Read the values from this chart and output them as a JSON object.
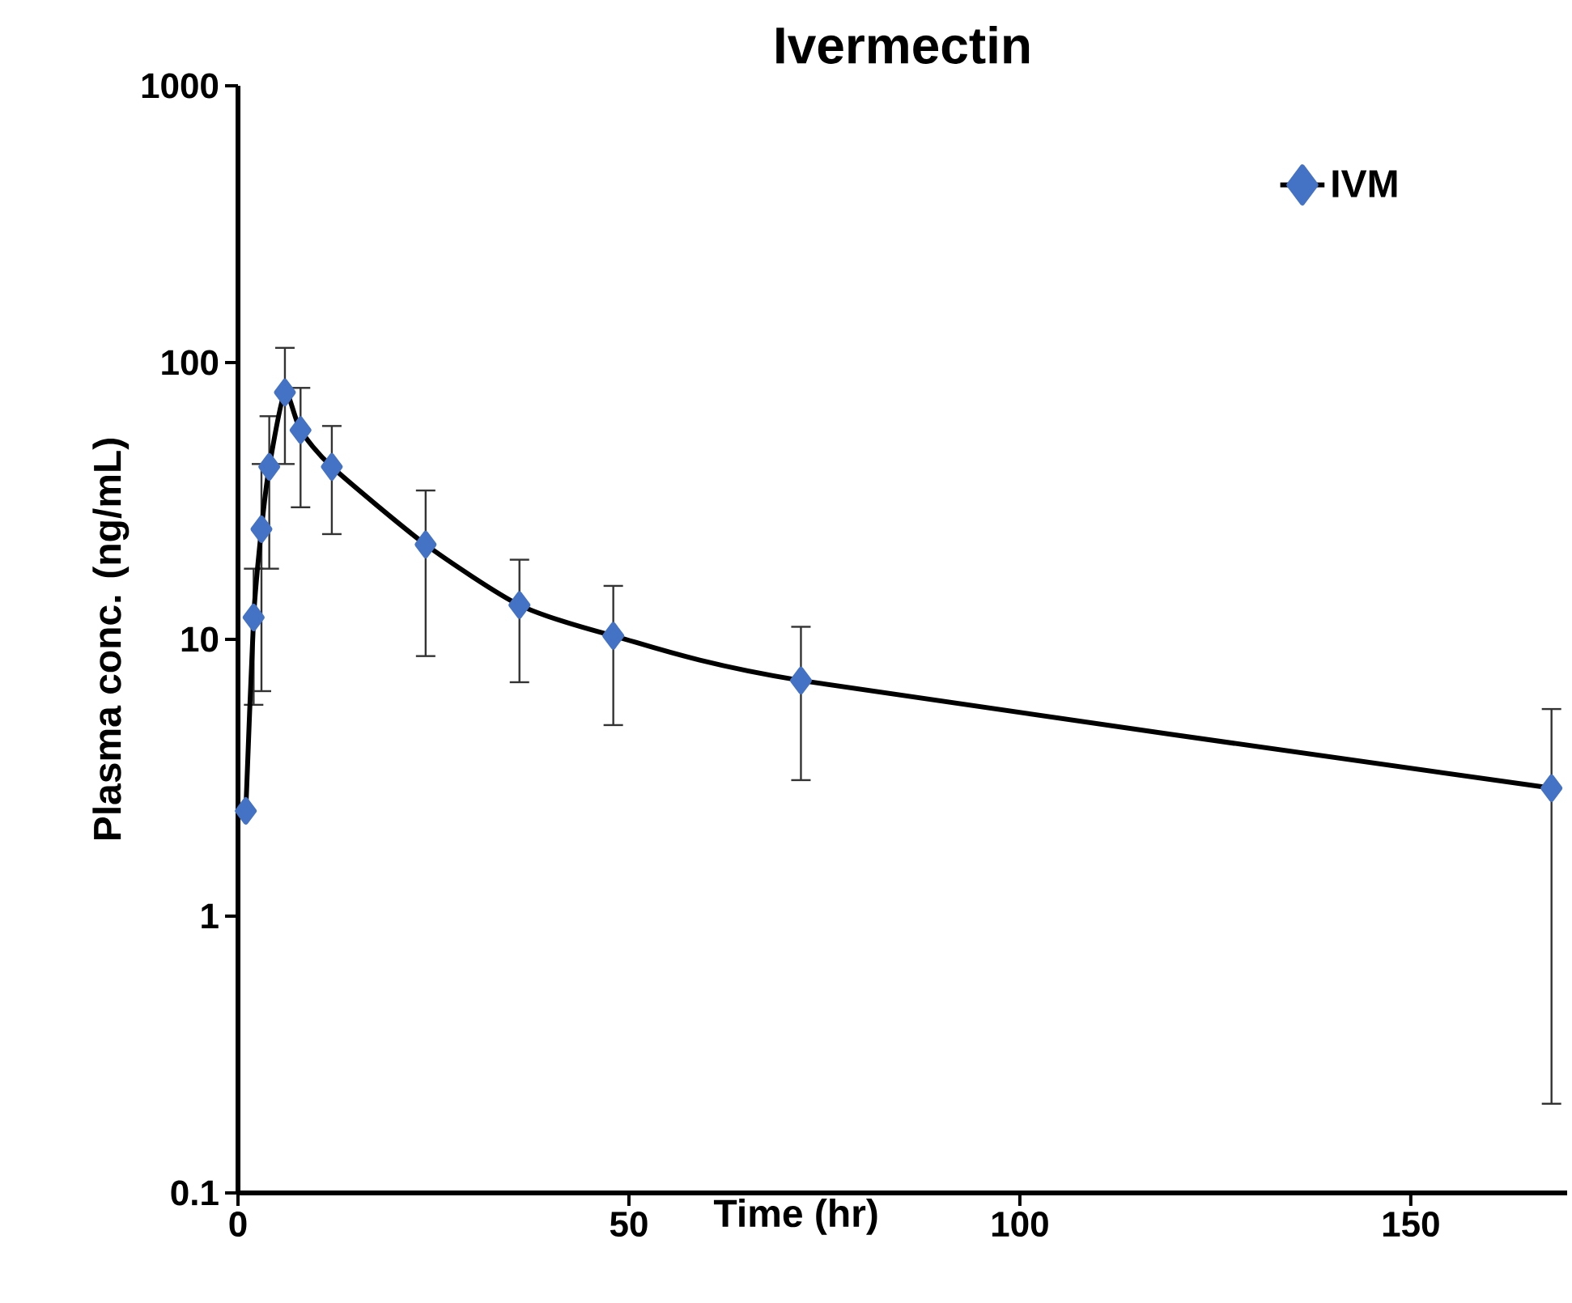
{
  "chart_data": {
    "type": "line",
    "title": "Ivermectin",
    "xlabel": "Time (hr)",
    "ylabel": "Plasma conc. (ng/mL)",
    "series": [
      {
        "name": "IVM",
        "color": "#4472c4",
        "x": [
          1,
          2,
          3,
          4,
          6,
          8,
          12,
          24,
          36,
          48,
          72,
          168
        ],
        "values": [
          2.4,
          12,
          25,
          42,
          78,
          57,
          42,
          22,
          13.3,
          10.3,
          7.1,
          2.9
        ],
        "errors": [
          null,
          [
            5.8,
            18
          ],
          [
            6.5,
            43
          ],
          [
            18,
            64
          ],
          [
            43,
            113
          ],
          [
            30,
            81
          ],
          [
            24,
            59
          ],
          [
            8.7,
            34.5
          ],
          [
            7.0,
            19.4
          ],
          [
            4.9,
            15.6
          ],
          [
            3.1,
            11.1
          ],
          [
            0.21,
            5.6
          ]
        ]
      }
    ],
    "xlim": [
      0,
      170
    ],
    "ylim": [
      0.1,
      1000
    ],
    "xticks": [
      0,
      50,
      100,
      150
    ],
    "yticks": [
      0.1,
      1,
      10,
      100,
      1000
    ],
    "log": "y",
    "grid": false,
    "legend": "top right",
    "marker": "diamond",
    "line_style": "solid"
  }
}
